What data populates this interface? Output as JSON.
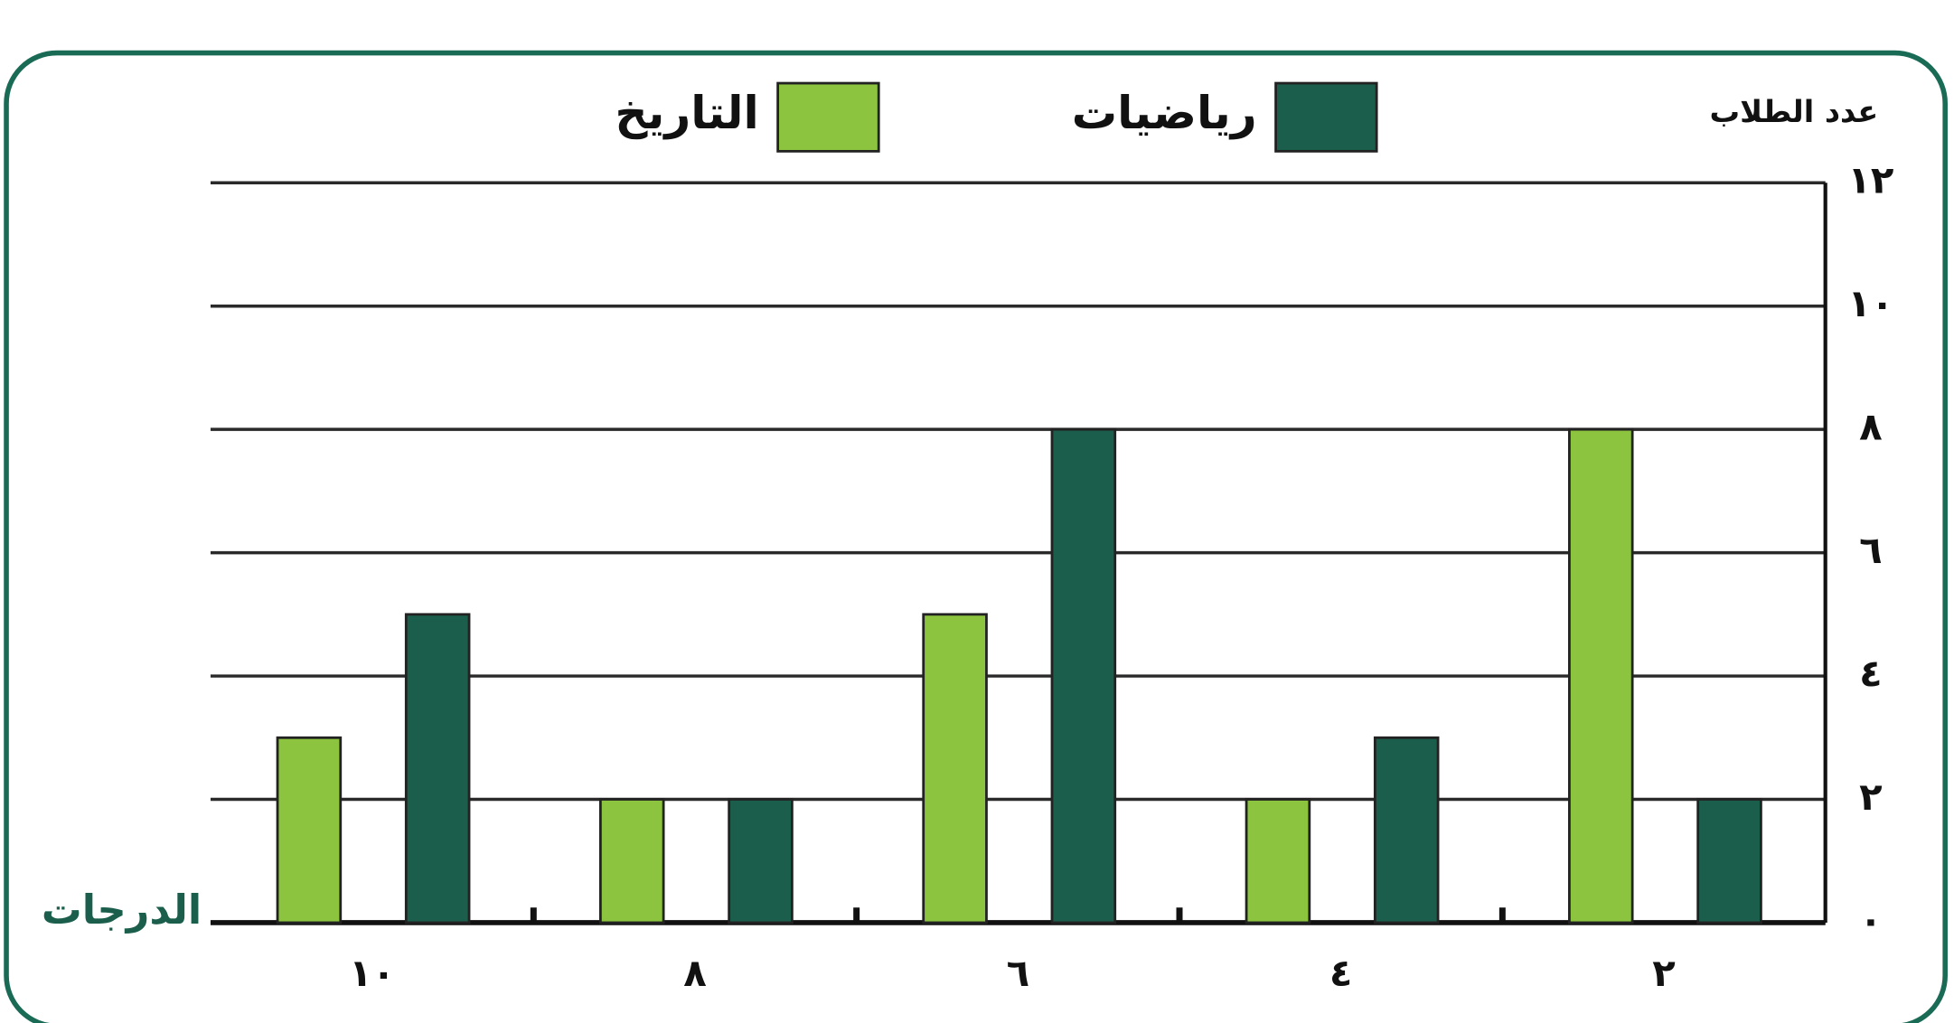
{
  "chart_data": {
    "type": "bar",
    "direction": "rtl",
    "y_label": "عدد الطلاب",
    "x_label": "الدرجات",
    "categories": [
      "٢",
      "٤",
      "٦",
      "٨",
      "١٠"
    ],
    "series": [
      {
        "name": "رياضيات",
        "color": "#1b5e4b",
        "values": [
          2,
          3,
          8,
          2,
          5
        ]
      },
      {
        "name": "التاريخ",
        "color": "#8cc43f",
        "values": [
          8,
          2,
          5,
          2,
          3
        ]
      }
    ],
    "ylim": [
      0,
      12
    ],
    "yticks": [
      {
        "value": 0,
        "label": "٠"
      },
      {
        "value": 2,
        "label": "٢"
      },
      {
        "value": 4,
        "label": "٤"
      },
      {
        "value": 6,
        "label": "٦"
      },
      {
        "value": 8,
        "label": "٨"
      },
      {
        "value": 10,
        "label": "١٠"
      },
      {
        "value": 12,
        "label": "١٢"
      }
    ],
    "grid": true
  }
}
